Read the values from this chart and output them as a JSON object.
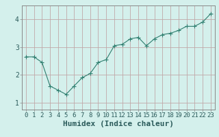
{
  "x": [
    0,
    1,
    2,
    3,
    4,
    5,
    6,
    7,
    8,
    9,
    10,
    11,
    12,
    13,
    14,
    15,
    16,
    17,
    18,
    19,
    20,
    21,
    22,
    23
  ],
  "y": [
    2.65,
    2.65,
    2.45,
    1.6,
    1.45,
    1.3,
    1.6,
    1.9,
    2.05,
    2.45,
    2.55,
    3.05,
    3.1,
    3.3,
    3.35,
    3.05,
    3.3,
    3.45,
    3.5,
    3.6,
    3.75,
    3.75,
    3.9,
    4.2
  ],
  "line_color": "#2e7d6e",
  "marker": "+",
  "marker_size": 4,
  "background_color": "#d4f0ec",
  "grid_color_major": "#c0a8a8",
  "grid_color_minor": "#c0a8a8",
  "xlabel": "Humidex (Indice chaleur)",
  "xlabel_fontsize": 8,
  "xlim": [
    -0.5,
    23.5
  ],
  "ylim": [
    0.75,
    4.5
  ],
  "yticks": [
    1,
    2,
    3,
    4
  ],
  "xticks": [
    0,
    1,
    2,
    3,
    4,
    5,
    6,
    7,
    8,
    9,
    10,
    11,
    12,
    13,
    14,
    15,
    16,
    17,
    18,
    19,
    20,
    21,
    22,
    23
  ],
  "tick_fontsize": 6.5,
  "spine_color": "#888888"
}
